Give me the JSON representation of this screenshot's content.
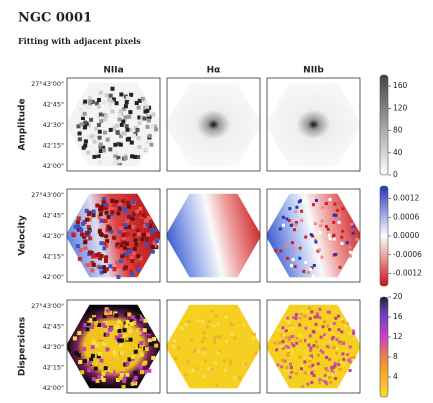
{
  "figure": {
    "title": "NGC 0001",
    "subtitle": "Fitting with adjacent pixels",
    "columns": [
      "NIIa",
      "Hα",
      "NIIb"
    ],
    "y_tick_labels": [
      "27°43'00\"",
      "42'45\"",
      "42'30\"",
      "42'15\"",
      "42'00\""
    ],
    "rows": [
      {
        "label": "Amplitude",
        "colorbar": {
          "lim": [
            0,
            180
          ],
          "ticks": [
            0,
            40,
            80,
            120,
            160
          ]
        }
      },
      {
        "label": "Velocity",
        "colorbar": {
          "lim": [
            -0.0016,
            0.0016
          ],
          "ticks": [
            -0.0012,
            -0.0006,
            {
              "value": 0,
              "label": "0.0000"
            },
            0.0006,
            0.0012
          ]
        }
      },
      {
        "label": "Dispersions",
        "colorbar": {
          "lim": [
            0,
            20
          ],
          "ticks": [
            4,
            8,
            12,
            16,
            20
          ]
        }
      }
    ]
  }
}
